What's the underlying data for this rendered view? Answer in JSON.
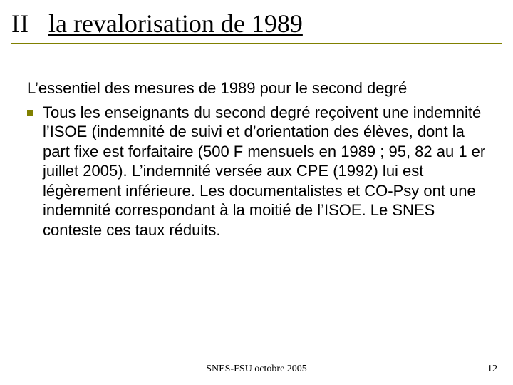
{
  "colors": {
    "accent": "#808000",
    "text": "#000000",
    "background": "#ffffff"
  },
  "typography": {
    "title_font": "Times New Roman",
    "title_fontsize_pt": 27,
    "body_font": "Arial",
    "body_fontsize_pt": 17,
    "footer_font": "Times New Roman",
    "footer_fontsize_pt": 11
  },
  "title": {
    "number": "II",
    "text": "la revalorisation de 1989"
  },
  "intro": "L’essentiel des mesures de 1989 pour le second degré",
  "bullets": [
    "Tous les enseignants du second degré reçoivent une indemnité l’ISOE (indemnité de suivi et d’orientation des élèves, dont la part fixe est forfaitaire (500 F mensuels en 1989 ; 95, 82 au 1 er juillet 2005). L’indemnité versée aux CPE (1992) lui est légèrement inférieure. Les documentalistes et CO-Psy ont une indemnité correspondant à la moitié de l’ISOE. Le SNES conteste ces taux réduits."
  ],
  "footer": {
    "center": "SNES-FSU octobre 2005",
    "page": "12"
  }
}
